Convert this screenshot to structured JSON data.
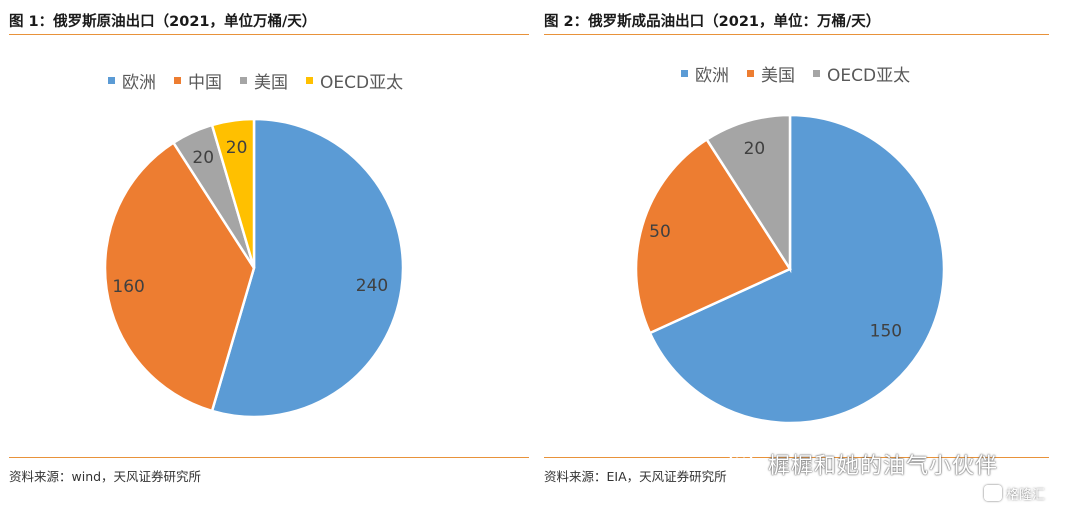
{
  "chart_data": [
    {
      "type": "pie",
      "title": "图 1：俄罗斯原油出口（2021，单位万桶/天）",
      "categories": [
        "欧洲",
        "中国",
        "美国",
        "OECD亚太"
      ],
      "values": [
        240,
        160,
        20,
        20
      ],
      "data_labels": [
        "240",
        "160",
        "20",
        "20"
      ],
      "colors": [
        "#5b9bd5",
        "#ed7d31",
        "#a5a5a5",
        "#ffc000"
      ],
      "legend_position": "top",
      "source": "资料来源：wind，天风证券研究所"
    },
    {
      "type": "pie",
      "title": "图 2：俄罗斯成品油出口（2021，单位：万桶/天）",
      "categories": [
        "欧洲",
        "美国",
        "OECD亚太"
      ],
      "values": [
        150,
        50,
        20
      ],
      "data_labels": [
        "150",
        "50",
        "20"
      ],
      "colors": [
        "#5b9bd5",
        "#ed7d31",
        "#a5a5a5"
      ],
      "legend_position": "top",
      "source": "资料来源：EIA，天风证券研究所"
    }
  ],
  "overlay": {
    "watermark_text": "樨樨和她的油气小伙伴",
    "watermark_icon": "wechat-icon",
    "brand_text": "格隆汇",
    "brand_icon": "gelonghui-logo-icon"
  }
}
